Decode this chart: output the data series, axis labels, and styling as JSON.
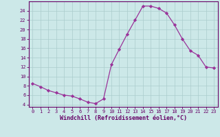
{
  "x": [
    0,
    1,
    2,
    3,
    4,
    5,
    6,
    7,
    8,
    9,
    10,
    11,
    12,
    13,
    14,
    15,
    16,
    17,
    18,
    19,
    20,
    21,
    22,
    23
  ],
  "y": [
    8.5,
    7.8,
    7.0,
    6.5,
    6.0,
    5.8,
    5.2,
    4.5,
    4.2,
    5.2,
    12.5,
    15.8,
    19.0,
    22.0,
    25.0,
    25.0,
    24.5,
    23.5,
    21.0,
    18.0,
    15.5,
    14.5,
    12.0,
    11.8
  ],
  "line_color": "#993399",
  "marker": "D",
  "marker_size": 2.2,
  "bg_color": "#cce8e8",
  "grid_color": "#aacccc",
  "xlabel": "Windchill (Refroidissement éolien,°C)",
  "ylim": [
    3.5,
    26
  ],
  "xlim": [
    -0.5,
    23.5
  ],
  "yticks": [
    4,
    6,
    8,
    10,
    12,
    14,
    16,
    18,
    20,
    22,
    24
  ],
  "xticks": [
    0,
    1,
    2,
    3,
    4,
    5,
    6,
    7,
    8,
    9,
    10,
    11,
    12,
    13,
    14,
    15,
    16,
    17,
    18,
    19,
    20,
    21,
    22,
    23
  ],
  "tick_fontsize": 5.0,
  "xlabel_fontsize": 6.0,
  "spine_color": "#660066"
}
